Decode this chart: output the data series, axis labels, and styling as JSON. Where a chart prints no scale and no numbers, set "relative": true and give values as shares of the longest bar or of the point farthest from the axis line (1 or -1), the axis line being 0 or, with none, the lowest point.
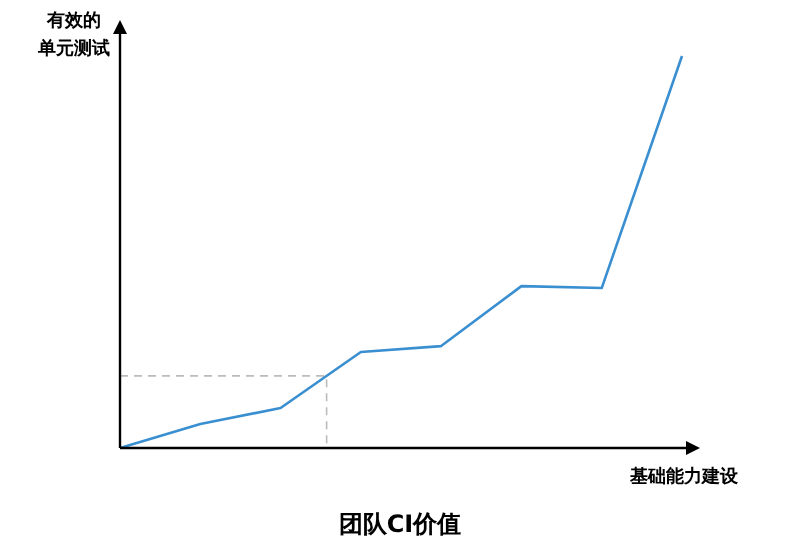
{
  "chart_data": {
    "type": "line",
    "title": "团队CI价值",
    "xlabel": "基础能力建设",
    "ylabel": "有效的单元测试",
    "relative": true,
    "categories": [
      null,
      null,
      null,
      null,
      null,
      null,
      null,
      null
    ],
    "series": [
      {
        "color": "#3a8fd1",
        "values": [
          0,
          0.061,
          0.102,
          0.245,
          0.26,
          0.413,
          0.408,
          1
        ]
      }
    ],
    "ref_lines": [
      {
        "axis": "y",
        "value": 0.184,
        "color": "#bbbbbb",
        "line_style": "dashed"
      }
    ],
    "marker": "none",
    "line_style": "solid",
    "grid": false,
    "legend": false
  }
}
